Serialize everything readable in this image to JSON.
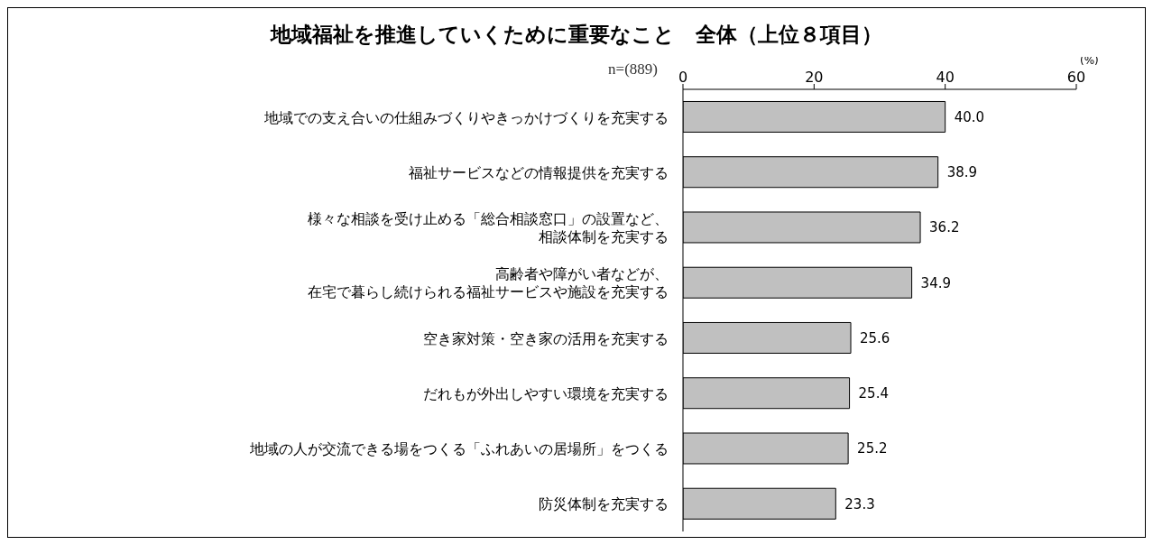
{
  "chart_data": {
    "type": "bar",
    "orientation": "horizontal",
    "title": "地域福祉を推進していくために重要なこと　全体（上位８項目）",
    "xlabel": "(%)",
    "annotations": [
      "n=(889)"
    ],
    "categories": [
      "地域での支え合いの仕組みづくりやきっかけづくりを充実する",
      "福祉サービスなどの情報提供を充実する",
      "様々な相談を受け止める「総合相談窓口」の設置など、相談体制を充実する",
      "高齢者や障がい者などが、在宅で暮らし続けられる福祉サービスや施設を充実する",
      "空き家対策・空き家の活用を充実する",
      "だれもが外出しやすい環境を充実する",
      "地域の人が交流できる場をつくる「ふれあいの居場所」をつくる",
      "防災体制を充実する"
    ],
    "values": [
      40.0,
      38.9,
      36.2,
      34.9,
      25.6,
      25.4,
      25.2,
      23.3
    ],
    "value_labels": [
      "40.0",
      "38.9",
      "36.2",
      "34.9",
      "25.6",
      "25.4",
      "25.2",
      "23.3"
    ],
    "color": "#c0c0c0",
    "xlim": [
      0,
      60
    ],
    "xticks": [
      0,
      20,
      40,
      60
    ],
    "grid": false
  }
}
